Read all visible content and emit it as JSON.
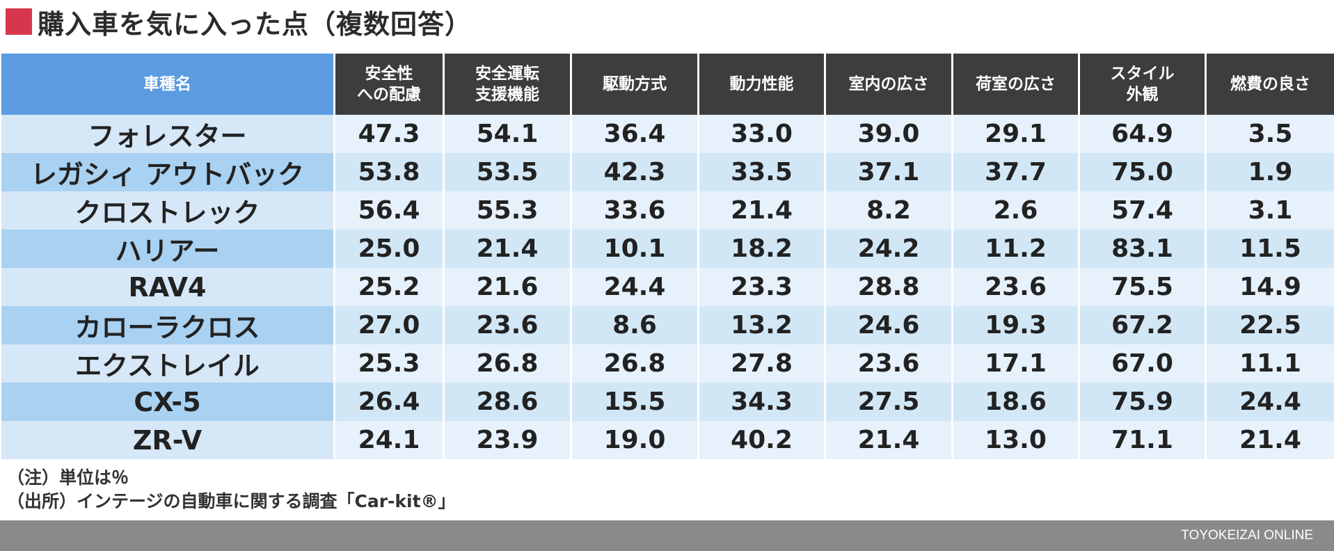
{
  "title": "購入車を気に入った点（複数回答）",
  "colors": {
    "accent_red": "#d7374c",
    "header_dark": "#3d3d3d",
    "header_blue": "#5b9be0"
  },
  "chart_data": {
    "type": "table",
    "title": "購入車を気に入った点（複数回答）",
    "row_header": "車種名",
    "columns": [
      {
        "line1": "安全性",
        "line2": "への配慮"
      },
      {
        "line1": "安全運転",
        "line2": "支援機能"
      },
      {
        "line1": "駆動方式",
        "line2": ""
      },
      {
        "line1": "動力性能",
        "line2": ""
      },
      {
        "line1": "室内の広さ",
        "line2": ""
      },
      {
        "line1": "荷室の広さ",
        "line2": ""
      },
      {
        "line1": "スタイル",
        "line2": "外観"
      },
      {
        "line1": "燃費の良さ",
        "line2": ""
      }
    ],
    "rows": [
      {
        "name": "フォレスター",
        "values": [
          "47.3",
          "54.1",
          "36.4",
          "33.0",
          "39.0",
          "29.1",
          "64.9",
          "3.5"
        ]
      },
      {
        "name": "レガシィ アウトバック",
        "values": [
          "53.8",
          "53.5",
          "42.3",
          "33.5",
          "37.1",
          "37.7",
          "75.0",
          "1.9"
        ]
      },
      {
        "name": "クロストレック",
        "values": [
          "56.4",
          "55.3",
          "33.6",
          "21.4",
          "8.2",
          "2.6",
          "57.4",
          "3.1"
        ]
      },
      {
        "name": "ハリアー",
        "values": [
          "25.0",
          "21.4",
          "10.1",
          "18.2",
          "24.2",
          "11.2",
          "83.1",
          "11.5"
        ]
      },
      {
        "name": "RAV4",
        "values": [
          "25.2",
          "21.6",
          "24.4",
          "23.3",
          "28.8",
          "23.6",
          "75.5",
          "14.9"
        ]
      },
      {
        "name": "カローラクロス",
        "values": [
          "27.0",
          "23.6",
          "8.6",
          "13.2",
          "24.6",
          "19.3",
          "67.2",
          "22.5"
        ]
      },
      {
        "name": "エクストレイル",
        "values": [
          "25.3",
          "26.8",
          "26.8",
          "27.8",
          "23.6",
          "17.1",
          "67.0",
          "11.1"
        ]
      },
      {
        "name": "CX-5",
        "values": [
          "26.4",
          "28.6",
          "15.5",
          "34.3",
          "27.5",
          "18.6",
          "75.9",
          "24.4"
        ]
      },
      {
        "name": "ZR-V",
        "values": [
          "24.1",
          "23.9",
          "19.0",
          "40.2",
          "21.4",
          "13.0",
          "71.1",
          "21.4"
        ]
      }
    ]
  },
  "notes": {
    "unit": "（注）単位は％",
    "source": "（出所）インテージの自動車に関する調査「Car-kit®」"
  },
  "footer": {
    "brand": "TOYOKEIZAI ONLINE"
  }
}
